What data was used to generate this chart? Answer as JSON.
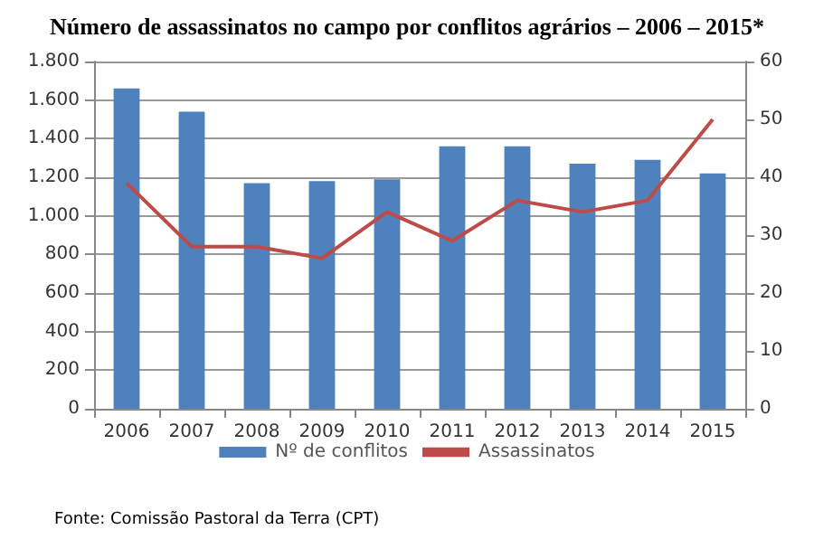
{
  "chart_data": {
    "type": "bar",
    "title": "Número de assassinatos no campo por conflitos agrários – 2006 – 2015*",
    "categories": [
      "2006",
      "2007",
      "2008",
      "2009",
      "2010",
      "2011",
      "2012",
      "2013",
      "2014",
      "2015"
    ],
    "series": [
      {
        "name": "Nº de conflitos",
        "color": "#4f81bd",
        "values": [
          1660,
          1540,
          1170,
          1180,
          1190,
          1360,
          1360,
          1270,
          1290,
          1220
        ]
      },
      {
        "name": "Assassinatos",
        "type": "line",
        "axis": "y2",
        "color": "#be4b48",
        "values": [
          39,
          28,
          28,
          26,
          34,
          29,
          36,
          34,
          36,
          50
        ]
      }
    ],
    "ylim": [
      0,
      1800
    ],
    "yticks": [
      0,
      {
        "value": 200,
        "label": "200"
      },
      {
        "value": 400,
        "label": "400"
      },
      {
        "value": 600,
        "label": "600"
      },
      {
        "value": 800,
        "label": "800"
      },
      {
        "value": 1000,
        "label": "1.000"
      },
      {
        "value": 1200,
        "label": "1.200"
      },
      {
        "value": 1400,
        "label": "1.400"
      },
      {
        "value": 1600,
        "label": "1.600"
      },
      {
        "value": 1800,
        "label": "1.800"
      }
    ],
    "y2lim": [
      0,
      60
    ],
    "y2ticks": [
      0,
      10,
      20,
      30,
      40,
      50,
      60
    ],
    "grid": "y",
    "legend": "bottom",
    "marker": "none",
    "annotations": [
      "Fonte: Comissão Pastoral da Terra (CPT)"
    ]
  }
}
